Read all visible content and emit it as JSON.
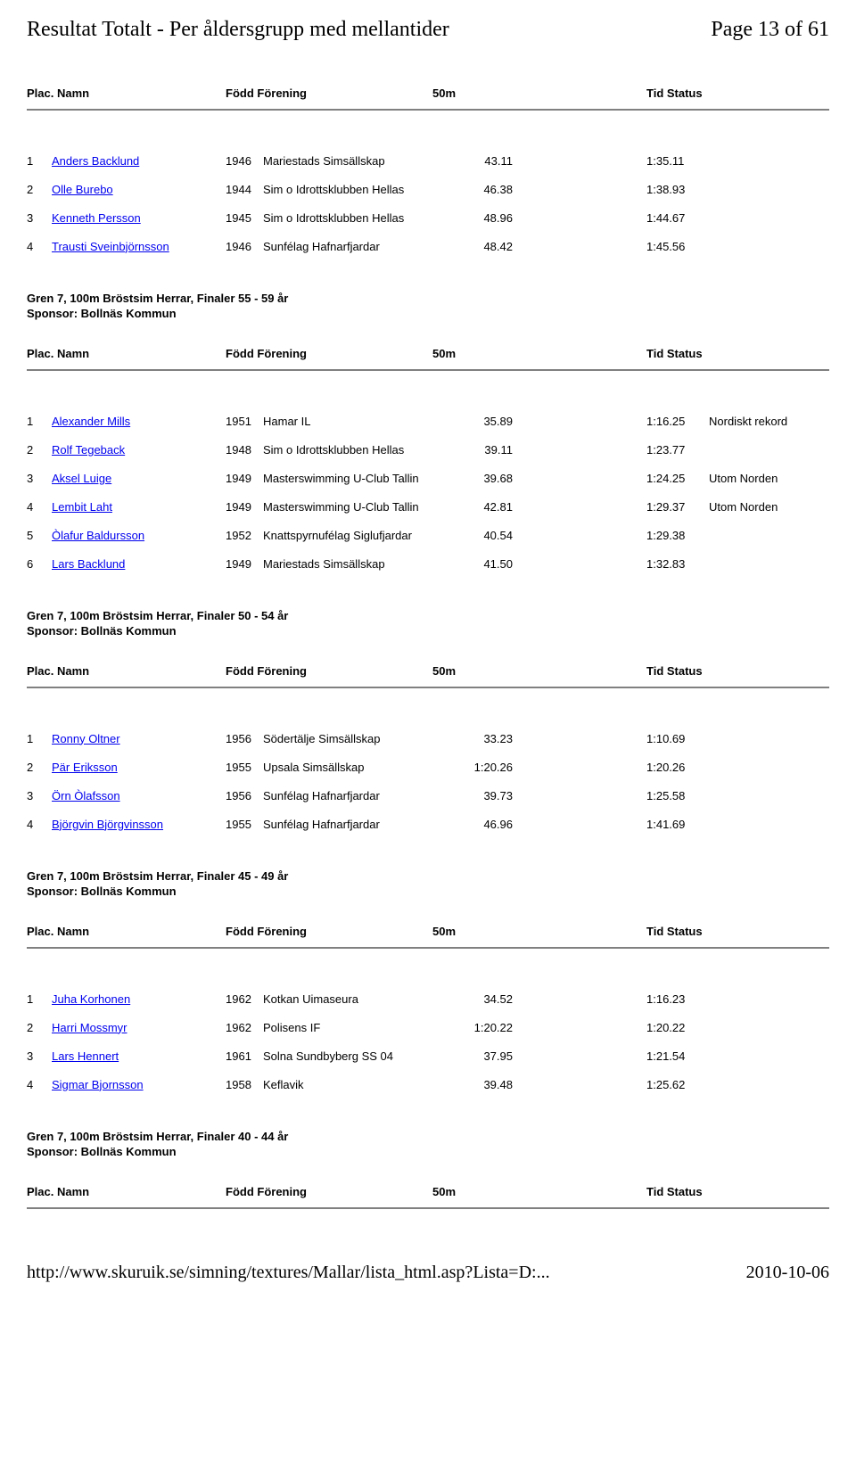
{
  "page_header_left": "Resultat Totalt - Per åldersgrupp med mellantider",
  "page_header_right": "Page 13 of 61",
  "col_headers": {
    "plac_namn": "Plac. Namn",
    "fodd_forening": "Född Förening",
    "m50": "50m",
    "tid_status": "Tid Status"
  },
  "footer_url": "http://www.skuruik.se/simning/textures/Mallar/lista_html.asp?Lista=D:...",
  "footer_date": "2010-10-06",
  "sections": [
    {
      "title": "",
      "sponsor": "",
      "rows": [
        {
          "plac": "1",
          "name": "Anders Backlund",
          "year": "1946",
          "club": "Mariestads Simsällskap",
          "m50": "43.11",
          "tid": "1:35.11",
          "status": ""
        },
        {
          "plac": "2",
          "name": "Olle Burebo",
          "year": "1944",
          "club": "Sim o Idrottsklubben Hellas",
          "m50": "46.38",
          "tid": "1:38.93",
          "status": ""
        },
        {
          "plac": "3",
          "name": "Kenneth Persson",
          "year": "1945",
          "club": "Sim o Idrottsklubben Hellas",
          "m50": "48.96",
          "tid": "1:44.67",
          "status": ""
        },
        {
          "plac": "4",
          "name": "Trausti Sveinbjörnsson",
          "year": "1946",
          "club": "Sunfélag Hafnarfjardar",
          "m50": "48.42",
          "tid": "1:45.56",
          "status": ""
        }
      ]
    },
    {
      "title": "Gren 7, 100m Bröstsim Herrar, Finaler 55 - 59 år",
      "sponsor": "Sponsor: Bollnäs Kommun",
      "rows": [
        {
          "plac": "1",
          "name": "Alexander Mills",
          "year": "1951",
          "club": "Hamar IL",
          "m50": "35.89",
          "tid": "1:16.25",
          "status": "Nordiskt rekord"
        },
        {
          "plac": "2",
          "name": "Rolf Tegeback",
          "year": "1948",
          "club": "Sim o Idrottsklubben Hellas",
          "m50": "39.11",
          "tid": "1:23.77",
          "status": ""
        },
        {
          "plac": "3",
          "name": "Aksel Luige",
          "year": "1949",
          "club": "Masterswimming U-Club Tallin",
          "m50": "39.68",
          "tid": "1:24.25",
          "status": "Utom Norden"
        },
        {
          "plac": "4",
          "name": "Lembit Laht",
          "year": "1949",
          "club": "Masterswimming U-Club Tallin",
          "m50": "42.81",
          "tid": "1:29.37",
          "status": "Utom Norden"
        },
        {
          "plac": "5",
          "name": "Òlafur Baldursson",
          "year": "1952",
          "club": "Knattspyrnufélag Siglufjardar",
          "m50": "40.54",
          "tid": "1:29.38",
          "status": ""
        },
        {
          "plac": "6",
          "name": "Lars Backlund",
          "year": "1949",
          "club": "Mariestads Simsällskap",
          "m50": "41.50",
          "tid": "1:32.83",
          "status": ""
        }
      ]
    },
    {
      "title": "Gren 7, 100m Bröstsim Herrar, Finaler 50 - 54 år",
      "sponsor": "Sponsor: Bollnäs Kommun",
      "rows": [
        {
          "plac": "1",
          "name": "Ronny Oltner",
          "year": "1956",
          "club": "Södertälje Simsällskap",
          "m50": "33.23",
          "tid": "1:10.69",
          "status": ""
        },
        {
          "plac": "2",
          "name": "Pär Eriksson",
          "year": "1955",
          "club": "Upsala Simsällskap",
          "m50": "1:20.26",
          "tid": "1:20.26",
          "status": ""
        },
        {
          "plac": "3",
          "name": "Örn Òlafsson",
          "year": "1956",
          "club": "Sunfélag Hafnarfjardar",
          "m50": "39.73",
          "tid": "1:25.58",
          "status": ""
        },
        {
          "plac": "4",
          "name": "Björgvin Björgvinsson",
          "year": "1955",
          "club": "Sunfélag Hafnarfjardar",
          "m50": "46.96",
          "tid": "1:41.69",
          "status": ""
        }
      ]
    },
    {
      "title": "Gren 7, 100m Bröstsim Herrar, Finaler 45 - 49 år",
      "sponsor": "Sponsor: Bollnäs Kommun",
      "rows": [
        {
          "plac": "1",
          "name": "Juha Korhonen",
          "year": "1962",
          "club": "Kotkan Uimaseura",
          "m50": "34.52",
          "tid": "1:16.23",
          "status": ""
        },
        {
          "plac": "2",
          "name": "Harri Mossmyr",
          "year": "1962",
          "club": "Polisens IF",
          "m50": "1:20.22",
          "tid": "1:20.22",
          "status": ""
        },
        {
          "plac": "3",
          "name": "Lars Hennert",
          "year": "1961",
          "club": "Solna Sundbyberg SS 04",
          "m50": "37.95",
          "tid": "1:21.54",
          "status": ""
        },
        {
          "plac": "4",
          "name": "Sigmar Bjornsson",
          "year": "1958",
          "club": "Keflavik",
          "m50": "39.48",
          "tid": "1:25.62",
          "status": ""
        }
      ]
    },
    {
      "title": "Gren 7, 100m Bröstsim Herrar, Finaler 40 - 44 år",
      "sponsor": "Sponsor: Bollnäs Kommun",
      "rows": []
    }
  ]
}
